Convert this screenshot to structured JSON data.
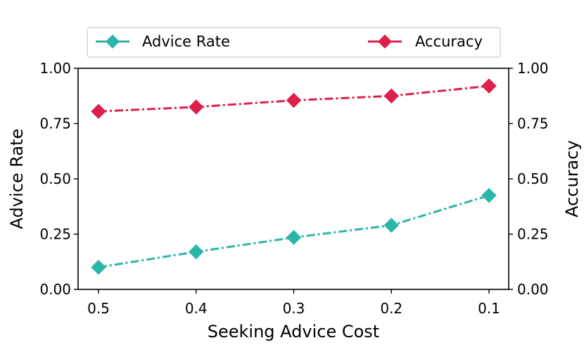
{
  "chart_data": {
    "type": "line",
    "xlabel": "Seeking Advice Cost",
    "ylabel_left": "Advice Rate",
    "ylabel_right": "Accuracy",
    "categories": [
      "0.5",
      "0.4",
      "0.3",
      "0.2",
      "0.1"
    ],
    "ylim": [
      0,
      1
    ],
    "yticks": [
      "0.00",
      "0.25",
      "0.50",
      "0.75",
      "1.00"
    ],
    "grid": false,
    "legend_position": "top",
    "series": [
      {
        "name": "Advice Rate",
        "axis": "left",
        "color": "#2ab7a9",
        "marker": "diamond",
        "linestyle": "dashdot",
        "values": [
          0.1,
          0.17,
          0.235,
          0.29,
          0.425
        ]
      },
      {
        "name": "Accuracy",
        "axis": "right",
        "color": "#dc1f4b",
        "marker": "diamond",
        "linestyle": "dashdot",
        "values": [
          0.805,
          0.825,
          0.855,
          0.875,
          0.92
        ]
      }
    ]
  }
}
